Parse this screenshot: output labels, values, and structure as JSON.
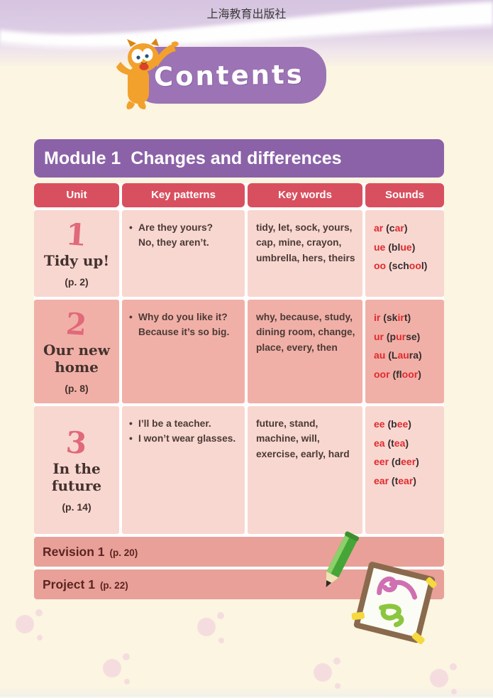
{
  "page": {
    "publisher": "上海教育出版社",
    "contents_title": "Contents"
  },
  "module": {
    "title": "Module 1  Changes and differences"
  },
  "table": {
    "headers": [
      "Unit",
      "Key patterns",
      "Key words",
      "Sounds"
    ],
    "rows": [
      {
        "unit_number": "1",
        "unit_title": "Tidy up!",
        "unit_page": "(p. 2)",
        "patterns": [
          {
            "bullet": true,
            "text": "Are they yours?"
          },
          {
            "bullet": false,
            "text": "No, they aren’t."
          }
        ],
        "key_words": "tidy, let, sock, yours, cap, mine, crayon, umbrella, hers, theirs",
        "sounds": [
          [
            {
              "t": "ar",
              "red": true
            },
            {
              "t": " (c"
            },
            {
              "t": "ar",
              "red": true
            },
            {
              "t": ")"
            }
          ],
          [
            {
              "t": "ue",
              "red": true
            },
            {
              "t": " (bl"
            },
            {
              "t": "ue",
              "red": true
            },
            {
              "t": ")"
            }
          ],
          [
            {
              "t": "oo",
              "red": true
            },
            {
              "t": " (sch"
            },
            {
              "t": "oo",
              "red": true
            },
            {
              "t": "l)"
            }
          ]
        ]
      },
      {
        "unit_number": "2",
        "unit_title": "Our new home",
        "unit_page": "(p. 8)",
        "patterns": [
          {
            "bullet": true,
            "text": "Why do you like it?"
          },
          {
            "bullet": false,
            "text": "Because it’s so big."
          }
        ],
        "key_words": "why, because, study, dining room, change, place, every, then",
        "sounds": [
          [
            {
              "t": "ir",
              "red": true
            },
            {
              "t": " (sk"
            },
            {
              "t": "ir",
              "red": true
            },
            {
              "t": "t)"
            }
          ],
          [
            {
              "t": "ur",
              "red": true
            },
            {
              "t": " (p"
            },
            {
              "t": "ur",
              "red": true
            },
            {
              "t": "se)"
            }
          ],
          [
            {
              "t": "au",
              "red": true
            },
            {
              "t": " (L"
            },
            {
              "t": "au",
              "red": true
            },
            {
              "t": "ra)"
            }
          ],
          [
            {
              "t": "oor",
              "red": true
            },
            {
              "t": " (fl"
            },
            {
              "t": "oor",
              "red": true
            },
            {
              "t": ")"
            }
          ]
        ]
      },
      {
        "unit_number": "3",
        "unit_title": "In the future",
        "unit_page": "(p. 14)",
        "patterns": [
          {
            "bullet": true,
            "text": "I’ll be a teacher."
          },
          {
            "bullet": true,
            "text": "I won’t wear glasses."
          }
        ],
        "key_words": "future, stand, machine, will, exercise, early, hard",
        "sounds": [
          [
            {
              "t": "ee",
              "red": true
            },
            {
              "t": " (b"
            },
            {
              "t": "ee",
              "red": true
            },
            {
              "t": ")"
            }
          ],
          [
            {
              "t": "ea",
              "red": true
            },
            {
              "t": " (t"
            },
            {
              "t": "ea",
              "red": true
            },
            {
              "t": ")"
            }
          ],
          [
            {
              "t": "eer",
              "red": true
            },
            {
              "t": " (d"
            },
            {
              "t": "eer",
              "red": true
            },
            {
              "t": ")"
            }
          ],
          [
            {
              "t": "ear",
              "red": true
            },
            {
              "t": " (t"
            },
            {
              "t": "ear",
              "red": true
            },
            {
              "t": ")"
            }
          ]
        ]
      }
    ],
    "footer_rows": [
      {
        "label": "Revision 1",
        "page": "(p. 20)"
      },
      {
        "label": "Project 1",
        "page": "(p. 22)"
      }
    ]
  },
  "colors": {
    "page_bg": "#FBF5E1",
    "top_band": "#D6C4E0",
    "badge_purple": "#9C73B4",
    "module_purple": "#8B62A8",
    "header_red": "#D8505F",
    "row_light": "#F8D7D0",
    "row_dark": "#F1B0A7",
    "footer_salmon": "#E9A098",
    "text_dark": "#4B3A36",
    "sound_red": "#E02A2E",
    "unit_number_pink": "#E0697A",
    "footer_text": "#5B2521"
  }
}
